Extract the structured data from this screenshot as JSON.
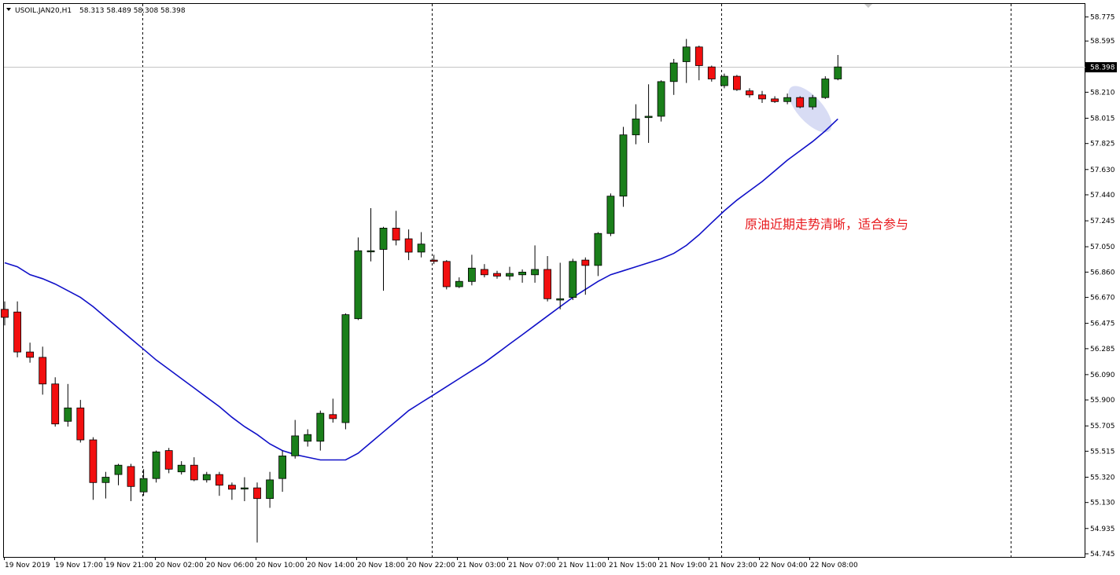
{
  "header": {
    "symbol": "USOIL.JAN20,H1",
    "ohlc": "58.313 58.489 58.308 58.398"
  },
  "current_price_label": "58.398",
  "annotation": "原油近期走势清晰，适合参与",
  "colors": {
    "bull_candle": "#1a7f1a",
    "bear_candle": "#f20f0f",
    "ma_line": "#1010c8",
    "annotation_text": "#e8191d",
    "highlight": "#d8dcf4",
    "grid_separator": "#000000"
  },
  "chart_data": {
    "type": "candlestick",
    "title": "",
    "xlabel": "",
    "ylabel": "",
    "ylim": [
      54.745,
      58.82
    ],
    "y_ticks": [
      "58.775",
      "58.595",
      "58.400",
      "58.210",
      "58.015",
      "57.825",
      "57.630",
      "57.440",
      "57.245",
      "57.050",
      "56.860",
      "56.670",
      "56.475",
      "56.285",
      "56.090",
      "55.900",
      "55.705",
      "55.515",
      "55.320",
      "55.130",
      "54.935",
      "54.745"
    ],
    "x_ticks": [
      "19 Nov 2019",
      "19 Nov 17:00",
      "19 Nov 21:00",
      "20 Nov 02:00",
      "20 Nov 06:00",
      "20 Nov 10:00",
      "20 Nov 14:00",
      "20 Nov 18:00",
      "20 Nov 22:00",
      "21 Nov 03:00",
      "21 Nov 07:00",
      "21 Nov 11:00",
      "21 Nov 15:00",
      "21 Nov 19:00",
      "21 Nov 23:00",
      "22 Nov 04:00",
      "22 Nov 08:00"
    ],
    "candles": [
      {
        "o": 56.58,
        "h": 56.64,
        "l": 56.46,
        "c": 56.52
      },
      {
        "o": 56.56,
        "h": 56.64,
        "l": 56.22,
        "c": 56.26
      },
      {
        "o": 56.26,
        "h": 56.33,
        "l": 56.18,
        "c": 56.22
      },
      {
        "o": 56.22,
        "h": 56.3,
        "l": 55.94,
        "c": 56.02
      },
      {
        "o": 56.02,
        "h": 56.07,
        "l": 55.7,
        "c": 55.72
      },
      {
        "o": 55.74,
        "h": 56.02,
        "l": 55.7,
        "c": 55.84
      },
      {
        "o": 55.84,
        "h": 55.9,
        "l": 55.58,
        "c": 55.6
      },
      {
        "o": 55.6,
        "h": 55.62,
        "l": 55.15,
        "c": 55.28
      },
      {
        "o": 55.28,
        "h": 55.36,
        "l": 55.16,
        "c": 55.32
      },
      {
        "o": 55.34,
        "h": 55.42,
        "l": 55.26,
        "c": 55.41
      },
      {
        "o": 55.4,
        "h": 55.42,
        "l": 55.14,
        "c": 55.25
      },
      {
        "o": 55.21,
        "h": 55.38,
        "l": 55.18,
        "c": 55.31
      },
      {
        "o": 55.31,
        "h": 55.52,
        "l": 55.28,
        "c": 55.51
      },
      {
        "o": 55.52,
        "h": 55.54,
        "l": 55.35,
        "c": 55.38
      },
      {
        "o": 55.36,
        "h": 55.44,
        "l": 55.34,
        "c": 55.41
      },
      {
        "o": 55.41,
        "h": 55.47,
        "l": 55.29,
        "c": 55.3
      },
      {
        "o": 55.3,
        "h": 55.36,
        "l": 55.28,
        "c": 55.34
      },
      {
        "o": 55.34,
        "h": 55.36,
        "l": 55.18,
        "c": 55.26
      },
      {
        "o": 55.26,
        "h": 55.28,
        "l": 55.15,
        "c": 55.23
      },
      {
        "o": 55.24,
        "h": 55.32,
        "l": 55.14,
        "c": 55.24
      },
      {
        "o": 55.24,
        "h": 55.28,
        "l": 54.83,
        "c": 55.16
      },
      {
        "o": 55.16,
        "h": 55.36,
        "l": 55.09,
        "c": 55.3
      },
      {
        "o": 55.31,
        "h": 55.52,
        "l": 55.21,
        "c": 55.48
      },
      {
        "o": 55.48,
        "h": 55.75,
        "l": 55.46,
        "c": 55.63
      },
      {
        "o": 55.59,
        "h": 55.68,
        "l": 55.55,
        "c": 55.64
      },
      {
        "o": 55.59,
        "h": 55.82,
        "l": 55.52,
        "c": 55.8
      },
      {
        "o": 55.79,
        "h": 55.91,
        "l": 55.73,
        "c": 55.76
      },
      {
        "o": 55.73,
        "h": 56.55,
        "l": 55.68,
        "c": 56.54
      },
      {
        "o": 56.51,
        "h": 57.12,
        "l": 56.5,
        "c": 57.02
      },
      {
        "o": 57.02,
        "h": 57.34,
        "l": 56.94,
        "c": 57.02
      },
      {
        "o": 57.03,
        "h": 57.2,
        "l": 56.72,
        "c": 57.19
      },
      {
        "o": 57.19,
        "h": 57.32,
        "l": 57.06,
        "c": 57.1
      },
      {
        "o": 57.11,
        "h": 57.18,
        "l": 56.95,
        "c": 57.01
      },
      {
        "o": 57.01,
        "h": 57.16,
        "l": 56.97,
        "c": 57.07
      },
      {
        "o": 56.95,
        "h": 56.99,
        "l": 56.92,
        "c": 56.94
      },
      {
        "o": 56.94,
        "h": 56.95,
        "l": 56.73,
        "c": 56.75
      },
      {
        "o": 56.75,
        "h": 56.82,
        "l": 56.74,
        "c": 56.79
      },
      {
        "o": 56.79,
        "h": 56.99,
        "l": 56.76,
        "c": 56.89
      },
      {
        "o": 56.88,
        "h": 56.92,
        "l": 56.82,
        "c": 56.84
      },
      {
        "o": 56.85,
        "h": 56.87,
        "l": 56.81,
        "c": 56.83
      },
      {
        "o": 56.83,
        "h": 56.9,
        "l": 56.8,
        "c": 56.85
      },
      {
        "o": 56.84,
        "h": 56.88,
        "l": 56.78,
        "c": 56.86
      },
      {
        "o": 56.84,
        "h": 57.06,
        "l": 56.78,
        "c": 56.88
      },
      {
        "o": 56.88,
        "h": 56.98,
        "l": 56.64,
        "c": 56.66
      },
      {
        "o": 56.65,
        "h": 56.93,
        "l": 56.58,
        "c": 56.66
      },
      {
        "o": 56.67,
        "h": 56.96,
        "l": 56.65,
        "c": 56.94
      },
      {
        "o": 56.95,
        "h": 56.97,
        "l": 56.69,
        "c": 56.91
      },
      {
        "o": 56.91,
        "h": 57.16,
        "l": 56.83,
        "c": 57.15
      },
      {
        "o": 57.15,
        "h": 57.45,
        "l": 57.13,
        "c": 57.43
      },
      {
        "o": 57.43,
        "h": 57.95,
        "l": 57.35,
        "c": 57.89
      },
      {
        "o": 57.89,
        "h": 58.12,
        "l": 57.82,
        "c": 58.01
      },
      {
        "o": 58.02,
        "h": 58.27,
        "l": 57.83,
        "c": 58.03
      },
      {
        "o": 58.03,
        "h": 58.3,
        "l": 57.99,
        "c": 58.29
      },
      {
        "o": 58.29,
        "h": 58.46,
        "l": 58.19,
        "c": 58.43
      },
      {
        "o": 58.44,
        "h": 58.61,
        "l": 58.28,
        "c": 58.55
      },
      {
        "o": 58.55,
        "h": 58.56,
        "l": 58.3,
        "c": 58.41
      },
      {
        "o": 58.4,
        "h": 58.41,
        "l": 58.29,
        "c": 58.31
      },
      {
        "o": 58.26,
        "h": 58.35,
        "l": 58.24,
        "c": 58.33
      },
      {
        "o": 58.33,
        "h": 58.34,
        "l": 58.22,
        "c": 58.23
      },
      {
        "o": 58.22,
        "h": 58.24,
        "l": 58.17,
        "c": 58.19
      },
      {
        "o": 58.19,
        "h": 58.22,
        "l": 58.13,
        "c": 58.16
      },
      {
        "o": 58.16,
        "h": 58.18,
        "l": 58.13,
        "c": 58.14
      },
      {
        "o": 58.14,
        "h": 58.2,
        "l": 58.12,
        "c": 58.17
      },
      {
        "o": 58.17,
        "h": 58.18,
        "l": 58.09,
        "c": 58.1
      },
      {
        "o": 58.1,
        "h": 58.19,
        "l": 58.08,
        "c": 58.17
      },
      {
        "o": 58.17,
        "h": 58.33,
        "l": 58.16,
        "c": 58.31
      },
      {
        "o": 58.31,
        "h": 58.49,
        "l": 58.3,
        "c": 58.4
      }
    ],
    "ma": [
      56.93,
      56.9,
      56.84,
      56.81,
      56.77,
      56.72,
      56.67,
      56.6,
      56.52,
      56.44,
      56.36,
      56.28,
      56.2,
      56.13,
      56.06,
      55.99,
      55.92,
      55.85,
      55.77,
      55.7,
      55.64,
      55.57,
      55.52,
      55.49,
      55.47,
      55.45,
      55.45,
      55.45,
      55.5,
      55.58,
      55.66,
      55.74,
      55.82,
      55.88,
      55.94,
      56.0,
      56.06,
      56.12,
      56.18,
      56.25,
      56.32,
      56.39,
      56.46,
      56.53,
      56.6,
      56.67,
      56.73,
      56.79,
      56.84,
      56.87,
      56.9,
      56.93,
      56.96,
      57.0,
      57.06,
      57.14,
      57.23,
      57.32,
      57.4,
      57.47,
      57.54,
      57.62,
      57.7,
      57.77,
      57.84,
      57.92,
      58.01
    ]
  }
}
